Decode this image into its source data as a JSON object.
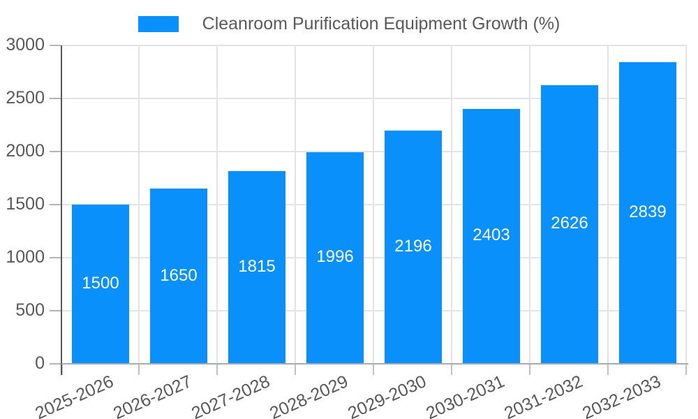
{
  "legend": {
    "label": "Cleanroom Purification Equipment Growth (%)"
  },
  "colors": {
    "bar": "#0a90fa",
    "grid": "#e3e3e3",
    "y_axis_line": "#56575b",
    "x_axis_line": "#aaabad",
    "tick": "#b4b4b4",
    "axis_text": "#595959",
    "value_text": "#ffffff"
  },
  "chart_data": {
    "type": "bar",
    "title": "Cleanroom Purification Equipment Growth (%)",
    "categories": [
      "2025-2026",
      "2026-2027",
      "2027-2028",
      "2028-2029",
      "2029-2030",
      "2030-2031",
      "2031-2032",
      "2032-2033"
    ],
    "values": [
      1500,
      1650,
      1815,
      1996,
      2196,
      2403,
      2626,
      2839
    ],
    "value_label_position": "inside-center",
    "xlabel": "",
    "ylabel": "",
    "ylim": [
      0,
      3000
    ],
    "ytick_step": 500,
    "yticks": [
      "0",
      "500",
      "1000",
      "1500",
      "2000",
      "2500",
      "3000"
    ],
    "grid": true,
    "legend_position": "top-center",
    "xtick_rotation_deg": -24
  }
}
